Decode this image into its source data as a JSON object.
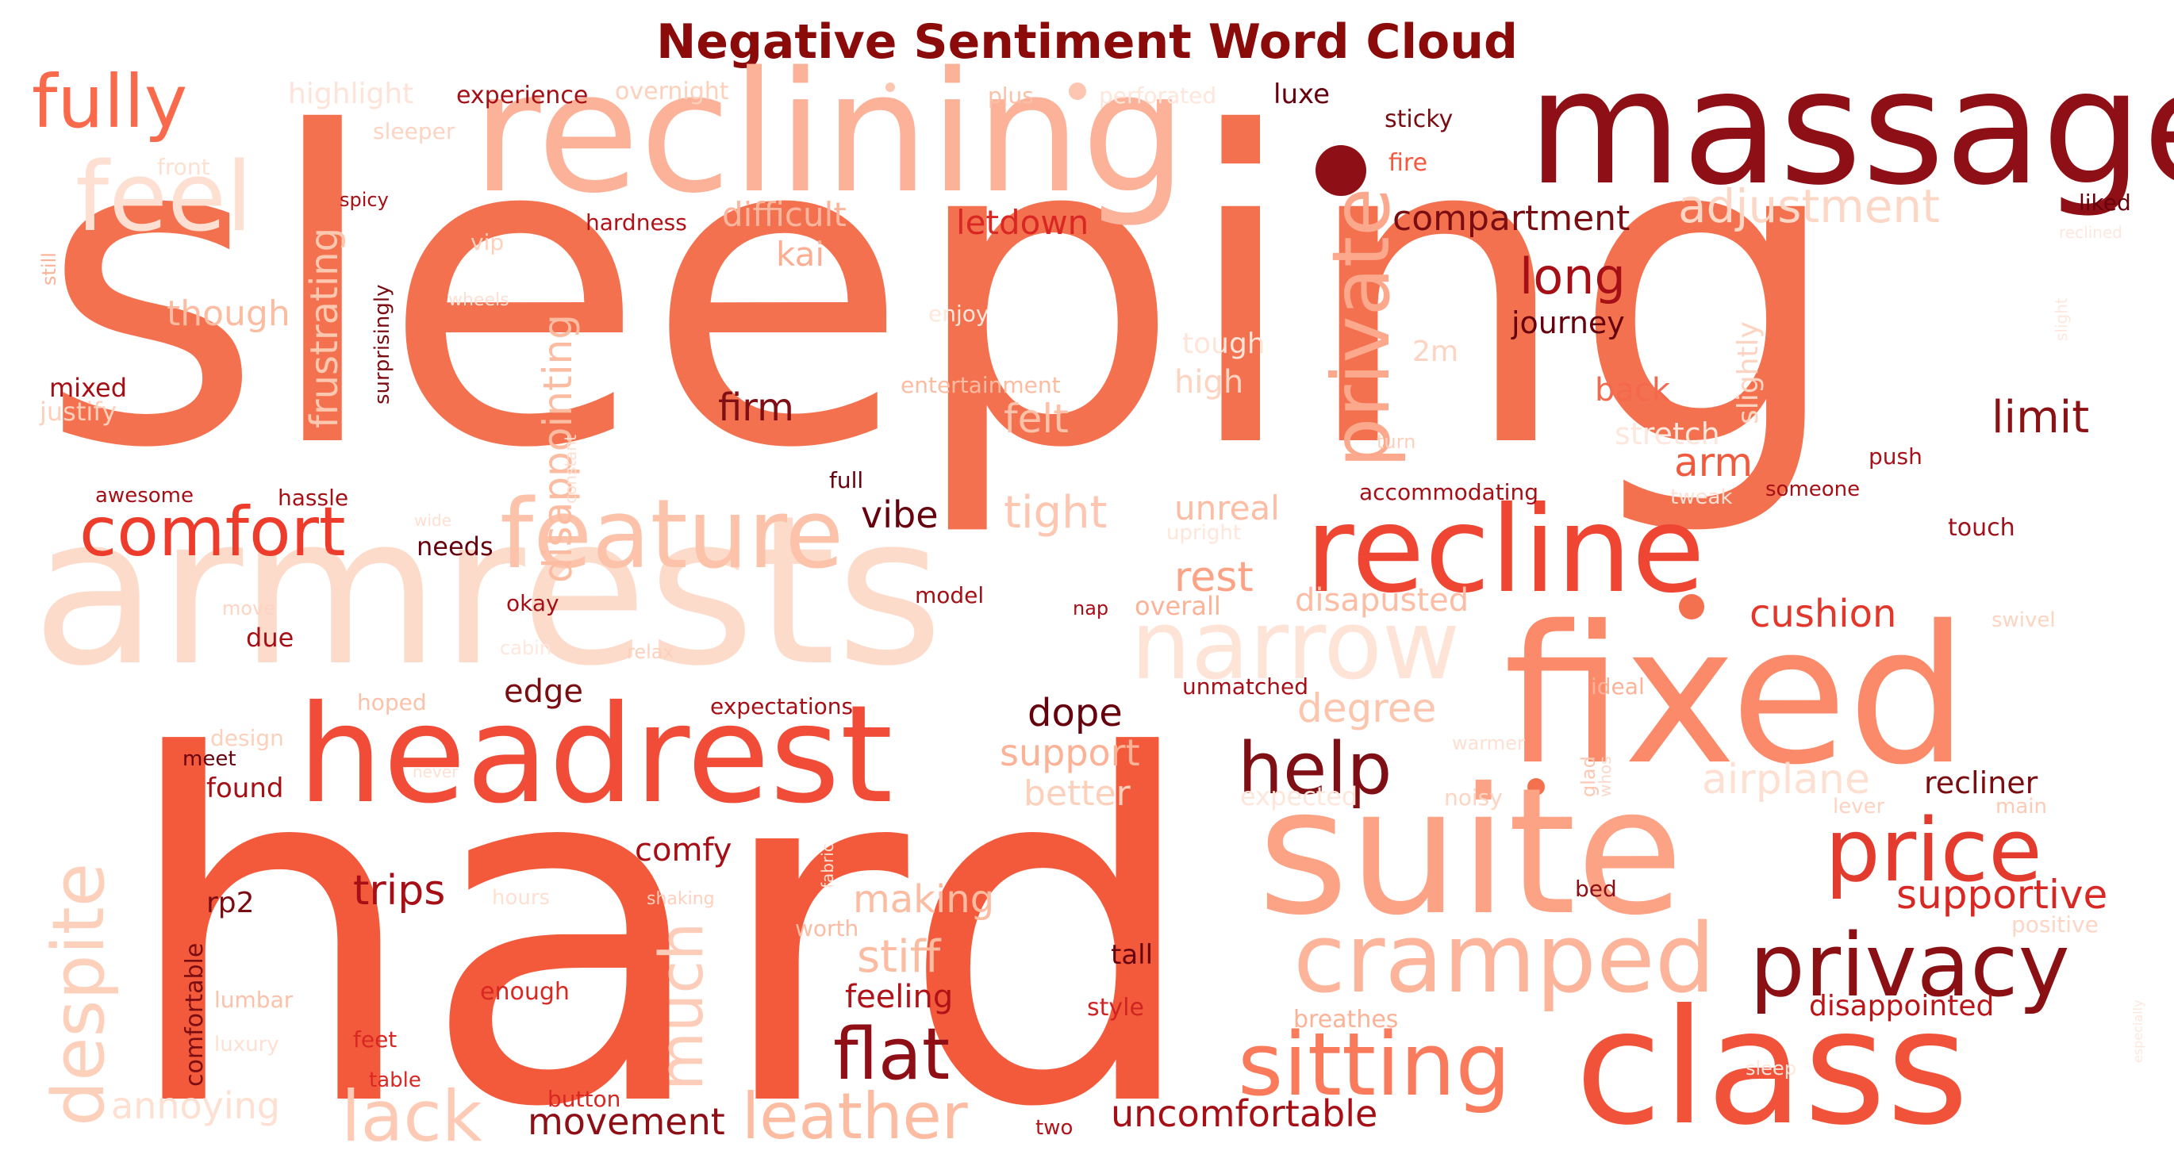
{
  "title": "Negative Sentiment Word Cloud",
  "colors": {
    "title": "#8b0a0a",
    "background": "#ffffff"
  },
  "words": [
    {
      "text": "sleeping",
      "color": "#f4714f"
    },
    {
      "text": "hard",
      "color": "#f35a3c"
    },
    {
      "text": "armrests",
      "color": "#fddbcb"
    },
    {
      "text": "massage",
      "color": "#8e1016"
    },
    {
      "text": "reclining",
      "color": "#fcb199"
    },
    {
      "text": "fixed",
      "color": "#fb8a6a"
    },
    {
      "text": "suite",
      "color": "#fca285"
    },
    {
      "text": "class",
      "color": "#f05339"
    },
    {
      "text": "headrest",
      "color": "#f04c37"
    },
    {
      "text": "recline",
      "color": "#ee4632"
    },
    {
      "text": "feature",
      "color": "#fcc2aa"
    },
    {
      "text": "narrow",
      "color": "#fee3d7"
    },
    {
      "text": "comfort",
      "color": "#ed3c2c"
    },
    {
      "text": "fully",
      "color": "#f96a4c"
    },
    {
      "text": "feel",
      "color": "#fde0d2"
    },
    {
      "text": "private",
      "color": "#fca88d"
    },
    {
      "text": "help",
      "color": "#7f0f14"
    },
    {
      "text": "price",
      "color": "#e33b2e"
    },
    {
      "text": "privacy",
      "color": "#8a1014"
    },
    {
      "text": "cramped",
      "color": "#fcb49b"
    },
    {
      "text": "sitting",
      "color": "#fa7b5c"
    },
    {
      "text": "flat",
      "color": "#8e1016"
    },
    {
      "text": "leather",
      "color": "#fcbca2"
    },
    {
      "text": "lack",
      "color": "#fdcab5"
    },
    {
      "text": "despite",
      "color": "#fdd0bc"
    },
    {
      "text": "much",
      "color": "#fdcdb9"
    },
    {
      "text": "disappointing",
      "color": "#fcbca2"
    },
    {
      "text": "frustrating",
      "color": "#fcc8b0"
    },
    {
      "text": "adjustment",
      "color": "#fdd7c6"
    },
    {
      "text": "compartment",
      "color": "#7a0d12"
    },
    {
      "text": "long",
      "color": "#a50f15"
    },
    {
      "text": "journey",
      "color": "#67000d"
    },
    {
      "text": "difficult",
      "color": "#fcb69e"
    },
    {
      "text": "letdown",
      "color": "#d92723"
    },
    {
      "text": "kai",
      "color": "#fcae93"
    },
    {
      "text": "though",
      "color": "#fcbca2"
    },
    {
      "text": "firm",
      "color": "#7f0f14"
    },
    {
      "text": "felt",
      "color": "#fcc1a9"
    },
    {
      "text": "vibe",
      "color": "#67000d"
    },
    {
      "text": "tight",
      "color": "#fdc6b0"
    },
    {
      "text": "unreal",
      "color": "#fcbda4"
    },
    {
      "text": "rest",
      "color": "#fca285"
    },
    {
      "text": "high",
      "color": "#fdd3c1"
    },
    {
      "text": "tough",
      "color": "#fee5d9"
    },
    {
      "text": "back",
      "color": "#f4694d"
    },
    {
      "text": "arm",
      "color": "#f05a3f"
    },
    {
      "text": "limit",
      "color": "#8b1115"
    },
    {
      "text": "cushion",
      "color": "#e2382c"
    },
    {
      "text": "stretch",
      "color": "#fee7dc"
    },
    {
      "text": "2m",
      "color": "#fdd4c2"
    },
    {
      "text": "slightly",
      "color": "#fdd4c2"
    },
    {
      "text": "push",
      "color": "#a8101a"
    },
    {
      "text": "someone",
      "color": "#a50f15"
    },
    {
      "text": "touch",
      "color": "#a0101a"
    },
    {
      "text": "tweak",
      "color": "#fee2d5"
    },
    {
      "text": "accommodating",
      "color": "#a50f15"
    },
    {
      "text": "degree",
      "color": "#fcc6ae"
    },
    {
      "text": "airplane",
      "color": "#fee0d2"
    },
    {
      "text": "recliner",
      "color": "#7a0d12"
    },
    {
      "text": "lever",
      "color": "#fdd2bf"
    },
    {
      "text": "main",
      "color": "#fdcab5"
    },
    {
      "text": "noisy",
      "color": "#fdd4c2"
    },
    {
      "text": "expected",
      "color": "#fee6da"
    },
    {
      "text": "supportive",
      "color": "#d92723"
    },
    {
      "text": "positive",
      "color": "#fdd5c4"
    },
    {
      "text": "disappointed",
      "color": "#bb1419"
    },
    {
      "text": "bed",
      "color": "#8e1016"
    },
    {
      "text": "glad",
      "color": "#fdc6b0"
    },
    {
      "text": "whos",
      "color": "#fdd8c8"
    },
    {
      "text": "ideal",
      "color": "#fcb296"
    },
    {
      "text": "warmer",
      "color": "#fee0d2"
    },
    {
      "text": "edge",
      "color": "#7a0d12"
    },
    {
      "text": "dope",
      "color": "#67000d"
    },
    {
      "text": "support",
      "color": "#fcb296"
    },
    {
      "text": "better",
      "color": "#fdd0bc"
    },
    {
      "text": "comfy",
      "color": "#a50f15"
    },
    {
      "text": "trips",
      "color": "#a50f15"
    },
    {
      "text": "making",
      "color": "#fcbca2"
    },
    {
      "text": "stiff",
      "color": "#fcbca2"
    },
    {
      "text": "feeling",
      "color": "#b01218"
    },
    {
      "text": "tall",
      "color": "#67000d"
    },
    {
      "text": "style",
      "color": "#d02423"
    },
    {
      "text": "movement",
      "color": "#8e1016"
    },
    {
      "text": "uncomfortable",
      "color": "#a50f15"
    },
    {
      "text": "breathes",
      "color": "#fcb296"
    },
    {
      "text": "two",
      "color": "#b31218"
    },
    {
      "text": "button",
      "color": "#d92723"
    },
    {
      "text": "annoying",
      "color": "#fee0d2"
    },
    {
      "text": "highlight",
      "color": "#fee4d8"
    },
    {
      "text": "experience",
      "color": "#a50f15"
    },
    {
      "text": "overnight",
      "color": "#fdd0bc"
    },
    {
      "text": "plus",
      "color": "#fcbfa7"
    },
    {
      "text": "perforated",
      "color": "#fee6da"
    },
    {
      "text": "luxe",
      "color": "#67000d"
    },
    {
      "text": "sticky",
      "color": "#7a0d12"
    },
    {
      "text": "fire",
      "color": "#f6583e"
    },
    {
      "text": "liked",
      "color": "#67000d"
    },
    {
      "text": "reclined",
      "color": "#fee7dc"
    },
    {
      "text": "slight",
      "color": "#fee7dc"
    },
    {
      "text": "sleeper",
      "color": "#fdd4c2"
    },
    {
      "text": "front",
      "color": "#fee0d2"
    },
    {
      "text": "spicy",
      "color": "#a50f15"
    },
    {
      "text": "hardness",
      "color": "#b01218"
    },
    {
      "text": "still",
      "color": "#fcb296"
    },
    {
      "text": "vip",
      "color": "#fdd0bc"
    },
    {
      "text": "surprisingly",
      "color": "#7a0d12"
    },
    {
      "text": "wheels",
      "color": "#fee0d2"
    },
    {
      "text": "enjoy",
      "color": "#fee7dc"
    },
    {
      "text": "mixed",
      "color": "#a50f15"
    },
    {
      "text": "justify",
      "color": "#fdd0bc"
    },
    {
      "text": "entertainment",
      "color": "#fcbca2"
    },
    {
      "text": "constant",
      "color": "#fee0d2"
    },
    {
      "text": "full",
      "color": "#67000d"
    },
    {
      "text": "turn",
      "color": "#fdd0bc"
    },
    {
      "text": "awesome",
      "color": "#a50f15"
    },
    {
      "text": "hassle",
      "color": "#a50f15"
    },
    {
      "text": "wide",
      "color": "#fee0d2"
    },
    {
      "text": "upright",
      "color": "#fee6da"
    },
    {
      "text": "needs",
      "color": "#67000d"
    },
    {
      "text": "okay",
      "color": "#a50f15"
    },
    {
      "text": "model",
      "color": "#a50f15"
    },
    {
      "text": "move",
      "color": "#fdd4c2"
    },
    {
      "text": "nap",
      "color": "#a50f15"
    },
    {
      "text": "overall",
      "color": "#fcb296"
    },
    {
      "text": "disapusted",
      "color": "#fcbda4"
    },
    {
      "text": "swivel",
      "color": "#fdd4c2"
    },
    {
      "text": "due",
      "color": "#a50f15"
    },
    {
      "text": "cabin",
      "color": "#fee7dc"
    },
    {
      "text": "relax",
      "color": "#fdd0bc"
    },
    {
      "text": "unmatched",
      "color": "#a50f15"
    },
    {
      "text": "hoped",
      "color": "#fcc1a9"
    },
    {
      "text": "expectations",
      "color": "#a50f15"
    },
    {
      "text": "design",
      "color": "#fdd0bc"
    },
    {
      "text": "meet",
      "color": "#67000d"
    },
    {
      "text": "never",
      "color": "#fee0d2"
    },
    {
      "text": "found",
      "color": "#a50f15"
    },
    {
      "text": "rp2",
      "color": "#7a0d12"
    },
    {
      "text": "hours",
      "color": "#fee0d2"
    },
    {
      "text": "shaking",
      "color": "#fdd0bc"
    },
    {
      "text": "fabric",
      "color": "#fee0d2"
    },
    {
      "text": "worth",
      "color": "#fcbca2"
    },
    {
      "text": "comfortable",
      "color": "#7a0d12"
    },
    {
      "text": "lumbar",
      "color": "#fcc1a9"
    },
    {
      "text": "enough",
      "color": "#d92723"
    },
    {
      "text": "luxury",
      "color": "#fee0d2"
    },
    {
      "text": "feet",
      "color": "#d92723"
    },
    {
      "text": "table",
      "color": "#d92723"
    },
    {
      "text": "sleep",
      "color": "#fee7dc"
    },
    {
      "text": "especially",
      "color": "#fee7dc"
    }
  ]
}
